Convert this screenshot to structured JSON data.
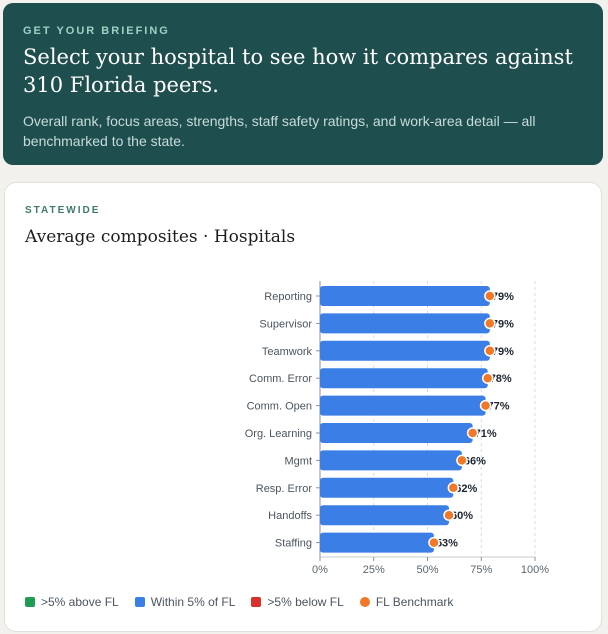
{
  "briefing": {
    "eyebrow": "GET YOUR BRIEFING",
    "title": "Select your hospital to see how it compares against 310 Florida peers.",
    "subtitle": "Overall rank, focus areas, strengths, staff safety ratings, and work-area detail — all benchmarked to the state."
  },
  "card": {
    "eyebrow": "STATEWIDE",
    "title": "Average composites · Hospitals"
  },
  "chart_data": {
    "type": "bar",
    "orientation": "horizontal",
    "categories": [
      "Reporting",
      "Supervisor",
      "Teamwork",
      "Comm. Error",
      "Comm. Open",
      "Org. Learning",
      "Mgmt",
      "Resp. Error",
      "Handoffs",
      "Staffing"
    ],
    "series": [
      {
        "values": [
          79,
          79,
          79,
          78,
          77,
          71,
          66,
          62,
          60,
          53
        ]
      }
    ],
    "value_labels": [
      "79%",
      "79%",
      "79%",
      "78%",
      "77%",
      "71%",
      "66%",
      "62%",
      "60%",
      "53%"
    ],
    "benchmark": [
      79,
      79,
      79,
      78,
      77,
      71,
      66,
      62,
      60,
      53
    ],
    "x_ticks": [
      "0%",
      "25%",
      "50%",
      "75%",
      "100%"
    ],
    "xlim": [
      0,
      100
    ],
    "grid": "vertical dashed",
    "colors": {
      "bar": "#3b7ee6",
      "benchmark": "#f07828",
      "above": "#1f9d55",
      "below": "#d9302c"
    }
  },
  "legend": [
    {
      "label": ">5% above FL",
      "color": "#1f9d55",
      "shape": "square"
    },
    {
      "label": "Within 5% of FL",
      "color": "#3b7ee6",
      "shape": "square"
    },
    {
      "label": ">5% below FL",
      "color": "#d9302c",
      "shape": "square"
    },
    {
      "label": "FL Benchmark",
      "color": "#f07828",
      "shape": "circle"
    }
  ]
}
